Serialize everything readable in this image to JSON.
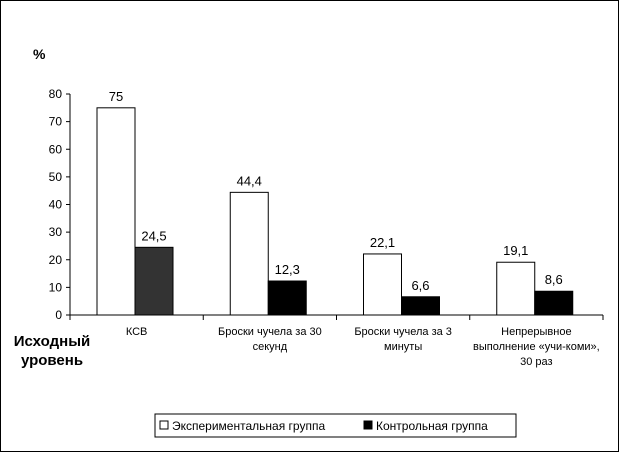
{
  "chart_data": {
    "type": "bar",
    "ylabel": "%",
    "xlabel": "Исходный уровень",
    "ylim": [
      0,
      80
    ],
    "yticks": [
      0,
      10,
      20,
      30,
      40,
      50,
      60,
      70,
      80
    ],
    "grid": false,
    "legend_position": "bottom",
    "categories": [
      [
        "КСВ"
      ],
      [
        "Броски чучела за 30",
        "секунд"
      ],
      [
        "Броски чучела за 3",
        "минуты"
      ],
      [
        "Непрерывное",
        "выполнение «учи-коми»,",
        "30 раз"
      ]
    ],
    "series": [
      {
        "name": "Экспериментальная группа",
        "color": "#ffffff",
        "values": [
          75,
          44.4,
          22.1,
          19.1
        ],
        "labels": [
          "75",
          "44,4",
          "22,1",
          "19,1"
        ]
      },
      {
        "name": "Контрольная группа",
        "color": "#000000",
        "colors": [
          "#333333",
          "#000000",
          "#000000",
          "#000000"
        ],
        "values": [
          24.5,
          12.3,
          6.6,
          8.6
        ],
        "labels": [
          "24,5",
          "12,3",
          "6,6",
          "8,6"
        ]
      }
    ]
  }
}
